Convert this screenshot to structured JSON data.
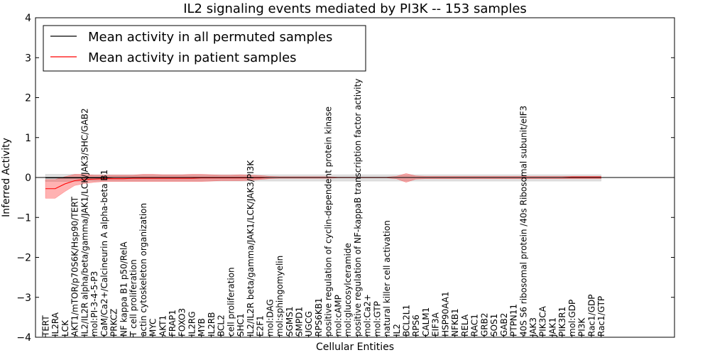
{
  "chart_data": {
    "type": "line",
    "title": "IL2 signaling events mediated by PI3K -- 153 samples",
    "xlabel": "Cellular Entities",
    "ylabel": "Inferred Activity",
    "ylim": [
      -4,
      4
    ],
    "yticks": [
      -4,
      -3,
      -2,
      -1,
      0,
      1,
      2,
      3,
      4
    ],
    "ytick_labels": [
      "−4",
      "−3",
      "−2",
      "−1",
      "0",
      "1",
      "2",
      "3",
      "4"
    ],
    "legend": {
      "placement": "top-left",
      "entries": [
        {
          "label": "Mean activity in all permuted samples",
          "color": "#000000"
        },
        {
          "label": "Mean activity in patient samples",
          "color": "#ff0000"
        }
      ]
    },
    "categories": [
      "TERT",
      "IL2RA",
      "LCK",
      "AKT1/mTOR/p70S6K/Hsp90/TERT",
      "IL2/IL2R alpha/beta/gamma/JAK1/LCK/JAK3/SHC/GAB2",
      "mol:PI-3-4-5-P3",
      "CaM/Ca2+/Calcineurin A alpha-beta B1",
      "PRKCZ",
      "NF kappa B1 p50/RelA",
      "T cell proliferation",
      "actin cytoskeleton organization",
      "MYC",
      "AKT1",
      "FRAP1",
      "FOXO3",
      "IL2RG",
      "MYB",
      "IL2RB",
      "BCL2",
      "cell proliferation",
      "SHC1",
      "IL2/IL2R beta/gamma/JAK1/LCK/JAK3/PI3K",
      "E2F1",
      "mol:DAG",
      "mol:sphingomyelin",
      "SGMS1",
      "SMPD1",
      "UGCG",
      "RPS6KB1",
      "positive regulation of cyclin-dependent protein kinase",
      "mol:cAMP",
      "mol:glucosylceramide",
      "positive regulation of NF-kappaB transcription factor activity",
      "mol:Ca2+",
      "mol:GTP",
      "natural killer cell activation",
      "IL2",
      "BCL2L1",
      "RPS6",
      "CALM1",
      "EIF3A",
      "HSP90AA1",
      "NFKB1",
      "RELA",
      "RAC1",
      "GRB2",
      "SOS1",
      "GAB2",
      "PTPN11",
      "40S S6 ribosomal protein /40s Ribosomal subunit/eIF3",
      "JAK3",
      "PIK3CA",
      "JAK1",
      "PIK3R1",
      "mol:GDP",
      "PI3K",
      "Rac1/GDP",
      "Rac1/GTP"
    ],
    "series": [
      {
        "name": "Mean activity in patient samples",
        "color": "#ff0000",
        "values": [
          -0.28,
          -0.28,
          -0.16,
          -0.08,
          -0.05,
          -0.04,
          -0.03,
          -0.03,
          -0.03,
          -0.02,
          -0.02,
          -0.02,
          -0.02,
          -0.02,
          -0.02,
          -0.02,
          -0.01,
          -0.01,
          -0.01,
          -0.01,
          -0.01,
          -0.01,
          -0.01,
          0,
          0,
          0,
          0,
          0,
          0,
          0,
          0,
          0,
          0,
          0,
          0,
          0,
          0,
          0,
          0,
          0,
          0,
          0,
          0,
          0,
          0,
          0,
          0,
          0,
          0,
          0,
          0,
          0,
          0,
          0,
          0.01,
          0.01,
          0.01,
          0.01
        ],
        "upper": [
          -0.05,
          -0.05,
          0.02,
          0.08,
          0.08,
          0.06,
          0.06,
          0.06,
          0.06,
          0.06,
          0.08,
          0.08,
          0.07,
          0.07,
          0.07,
          0.08,
          0.08,
          0.07,
          0.06,
          0.06,
          0.07,
          0.06,
          0.05,
          0.03,
          0.02,
          0.02,
          0.02,
          0.02,
          0.02,
          0.02,
          0.01,
          0.01,
          0.01,
          0.01,
          0.01,
          0.01,
          0.03,
          0.1,
          0.04,
          0.03,
          0.03,
          0.03,
          0.03,
          0.03,
          0.03,
          0.03,
          0.03,
          0.03,
          0.03,
          0.03,
          0.03,
          0.03,
          0.03,
          0.03,
          0.03,
          0.03,
          0.03,
          0.03
        ],
        "lower": [
          -0.52,
          -0.52,
          -0.35,
          -0.2,
          -0.15,
          -0.12,
          -0.1,
          -0.1,
          -0.1,
          -0.1,
          -0.1,
          -0.1,
          -0.1,
          -0.1,
          -0.1,
          -0.1,
          -0.1,
          -0.09,
          -0.08,
          -0.08,
          -0.08,
          -0.07,
          -0.05,
          -0.03,
          -0.02,
          -0.02,
          -0.02,
          -0.02,
          -0.02,
          -0.02,
          -0.01,
          -0.01,
          -0.01,
          -0.01,
          -0.01,
          -0.01,
          -0.03,
          -0.12,
          -0.04,
          -0.03,
          -0.03,
          -0.03,
          -0.03,
          -0.03,
          -0.03,
          -0.03,
          -0.03,
          -0.03,
          -0.03,
          -0.03,
          -0.03,
          -0.03,
          -0.03,
          -0.03,
          -0.03,
          -0.03,
          -0.03,
          -0.03
        ]
      },
      {
        "name": "Mean activity in all permuted samples",
        "color": "#000000",
        "values": [
          -0.01,
          -0.01,
          -0.01,
          -0.01,
          -0.01,
          -0.01,
          -0.01,
          0,
          0,
          0,
          0,
          0,
          0,
          0,
          0,
          0,
          0,
          0,
          0,
          0,
          0,
          0,
          0,
          0,
          0,
          0,
          0,
          0,
          0,
          0,
          0,
          0,
          0,
          0,
          0,
          0,
          0,
          0,
          0,
          0,
          0,
          0,
          0,
          0,
          0,
          0,
          0,
          0,
          0,
          0,
          0,
          0,
          0,
          0,
          0,
          0,
          0,
          0
        ],
        "upper": [
          0.08,
          0.08,
          0.08,
          0.08,
          0.07,
          0.07,
          0.07,
          0.07,
          0.07,
          0.07,
          0.07,
          0.07,
          0.07,
          0.07,
          0.07,
          0.07,
          0.07,
          0.07,
          0.07,
          0.07,
          0.07,
          0.07,
          0.07,
          0.07,
          0.07,
          0.07,
          0.07,
          0.07,
          0.07,
          0.07,
          0.07,
          0.07,
          0.07,
          0.07,
          0.07,
          0.07,
          0.07,
          0.07,
          0.07,
          0.07,
          0.07,
          0.07,
          0.07,
          0.07,
          0.07,
          0.07,
          0.07,
          0.07,
          0.07,
          0.07,
          0.07,
          0.07,
          0.07,
          0.07,
          0.07,
          0.07,
          0.07,
          0.07
        ],
        "lower": [
          -0.1,
          -0.1,
          -0.1,
          -0.1,
          -0.09,
          -0.09,
          -0.09,
          -0.09,
          -0.09,
          -0.09,
          -0.09,
          -0.09,
          -0.09,
          -0.09,
          -0.09,
          -0.09,
          -0.09,
          -0.09,
          -0.09,
          -0.09,
          -0.09,
          -0.09,
          -0.09,
          -0.09,
          -0.09,
          -0.09,
          -0.09,
          -0.09,
          -0.09,
          -0.09,
          -0.09,
          -0.09,
          -0.09,
          -0.09,
          -0.09,
          -0.09,
          -0.09,
          -0.09,
          -0.09,
          -0.09,
          -0.09,
          -0.09,
          -0.09,
          -0.09,
          -0.09,
          -0.09,
          -0.09,
          -0.09,
          -0.09,
          -0.09,
          -0.09,
          -0.09,
          -0.09,
          -0.09,
          -0.09,
          -0.09,
          -0.09,
          -0.09
        ]
      }
    ]
  }
}
